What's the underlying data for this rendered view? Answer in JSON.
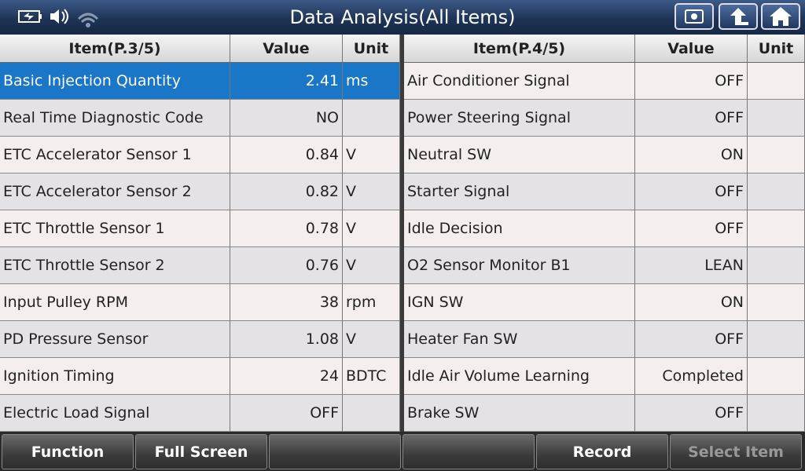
{
  "header": {
    "title": "Data Analysis(All Items)"
  },
  "tables": [
    {
      "columns": [
        "Item(P.3/5)",
        "Value",
        "Unit"
      ],
      "rows": [
        [
          "Basic Injection Quantity",
          2.41,
          "ms"
        ],
        [
          "Real Time Diagnostic Code",
          "NO",
          null
        ],
        [
          "ETC Accelerator Sensor 1",
          0.84,
          "V"
        ],
        [
          "ETC Accelerator Sensor 2",
          0.82,
          "V"
        ],
        [
          "ETC Throttle Sensor 1",
          0.78,
          "V"
        ],
        [
          "ETC Throttle Sensor 2",
          0.76,
          "V"
        ],
        [
          "Input Pulley RPM",
          38,
          "rpm"
        ],
        [
          "PD Pressure Sensor",
          1.08,
          "V"
        ],
        [
          "Ignition Timing",
          24,
          "BDTC"
        ],
        [
          "Electric Load Signal",
          "OFF",
          null
        ]
      ]
    },
    {
      "columns": [
        "Item(P.4/5)",
        "Value",
        "Unit"
      ],
      "rows": [
        [
          "Air Conditioner Signal",
          "OFF",
          null
        ],
        [
          "Power Steering Signal",
          "OFF",
          null
        ],
        [
          "Neutral SW",
          "ON",
          null
        ],
        [
          "Starter Signal",
          "OFF",
          null
        ],
        [
          "Idle Decision",
          "OFF",
          null
        ],
        [
          "O2 Sensor Monitor B1",
          "LEAN",
          null
        ],
        [
          "IGN SW",
          "ON",
          null
        ],
        [
          "Heater Fan SW",
          "OFF",
          null
        ],
        [
          "Idle Air Volume Learning",
          "Completed",
          null
        ],
        [
          "Brake SW",
          "OFF",
          null
        ]
      ]
    }
  ],
  "toolbar": [
    "Function",
    "Full Screen",
    null,
    null,
    "Record",
    "Select Item"
  ]
}
